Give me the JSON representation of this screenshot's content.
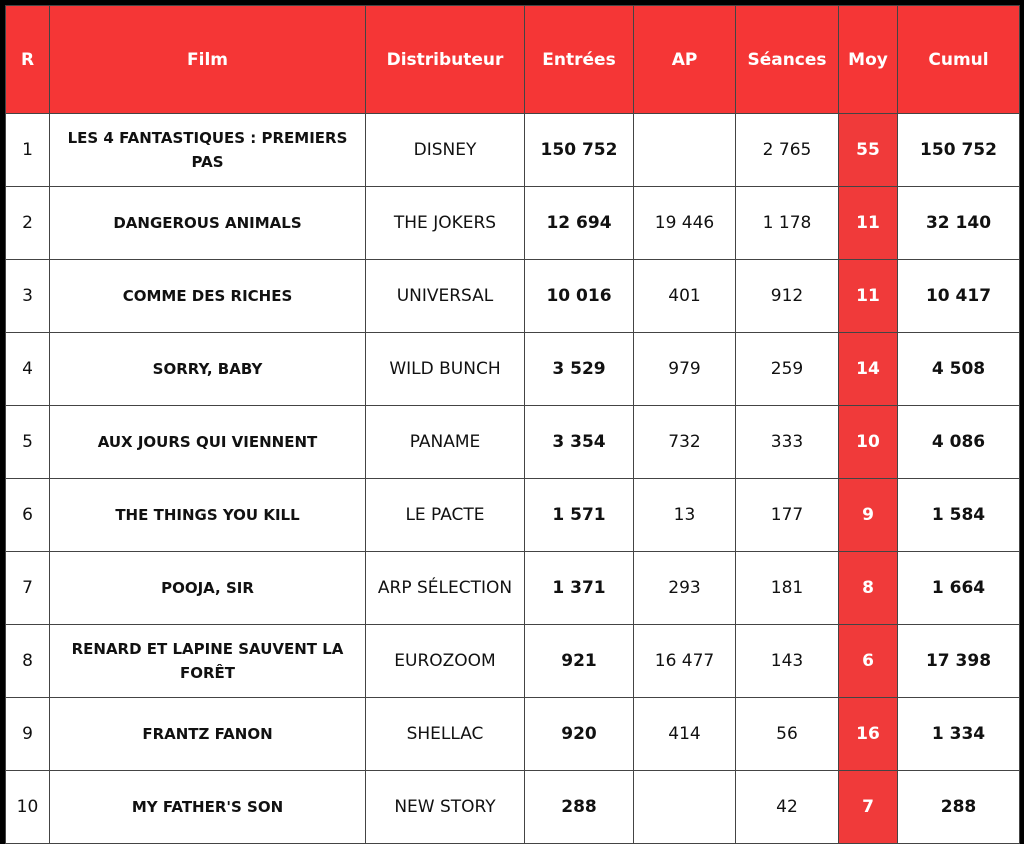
{
  "table": {
    "header": [
      "R",
      "Film",
      "Distributeur",
      "Entrées",
      "AP",
      "Séances",
      "Moy",
      "Cumul"
    ],
    "rows": [
      [
        "1",
        "LES 4 FANTASTIQUES : PREMIERS PAS",
        "DISNEY",
        "150 752",
        null,
        "2 765",
        "55",
        "150 752"
      ],
      [
        "2",
        "DANGEROUS ANIMALS",
        "THE JOKERS",
        "12 694",
        "19 446",
        "1 178",
        "11",
        "32 140"
      ],
      [
        "3",
        "COMME DES RICHES",
        "UNIVERSAL",
        "10 016",
        "401",
        "912",
        "11",
        "10 417"
      ],
      [
        "4",
        "SORRY, BABY",
        "WILD BUNCH",
        "3 529",
        "979",
        "259",
        "14",
        "4 508"
      ],
      [
        "5",
        "AUX JOURS QUI VIENNENT",
        "PANAME",
        "3 354",
        "732",
        "333",
        "10",
        "4 086"
      ],
      [
        "6",
        "THE THINGS YOU KILL",
        "LE PACTE",
        "1 571",
        "13",
        "177",
        "9",
        "1 584"
      ],
      [
        "7",
        "POOJA, SIR",
        "ARP SÉLECTION",
        "1 371",
        "293",
        "181",
        "8",
        "1 664"
      ],
      [
        "8",
        "RENARD ET LAPINE SAUVENT LA FORÊT",
        "EUROZOOM",
        "921",
        "16 477",
        "143",
        "6",
        "17 398"
      ],
      [
        "9",
        "FRANTZ FANON",
        "SHELLAC",
        "920",
        "414",
        "56",
        "16",
        "1 334"
      ],
      [
        "10",
        "MY FATHER'S SON",
        "NEW STORY",
        "288",
        null,
        "42",
        "7",
        "288"
      ]
    ]
  }
}
